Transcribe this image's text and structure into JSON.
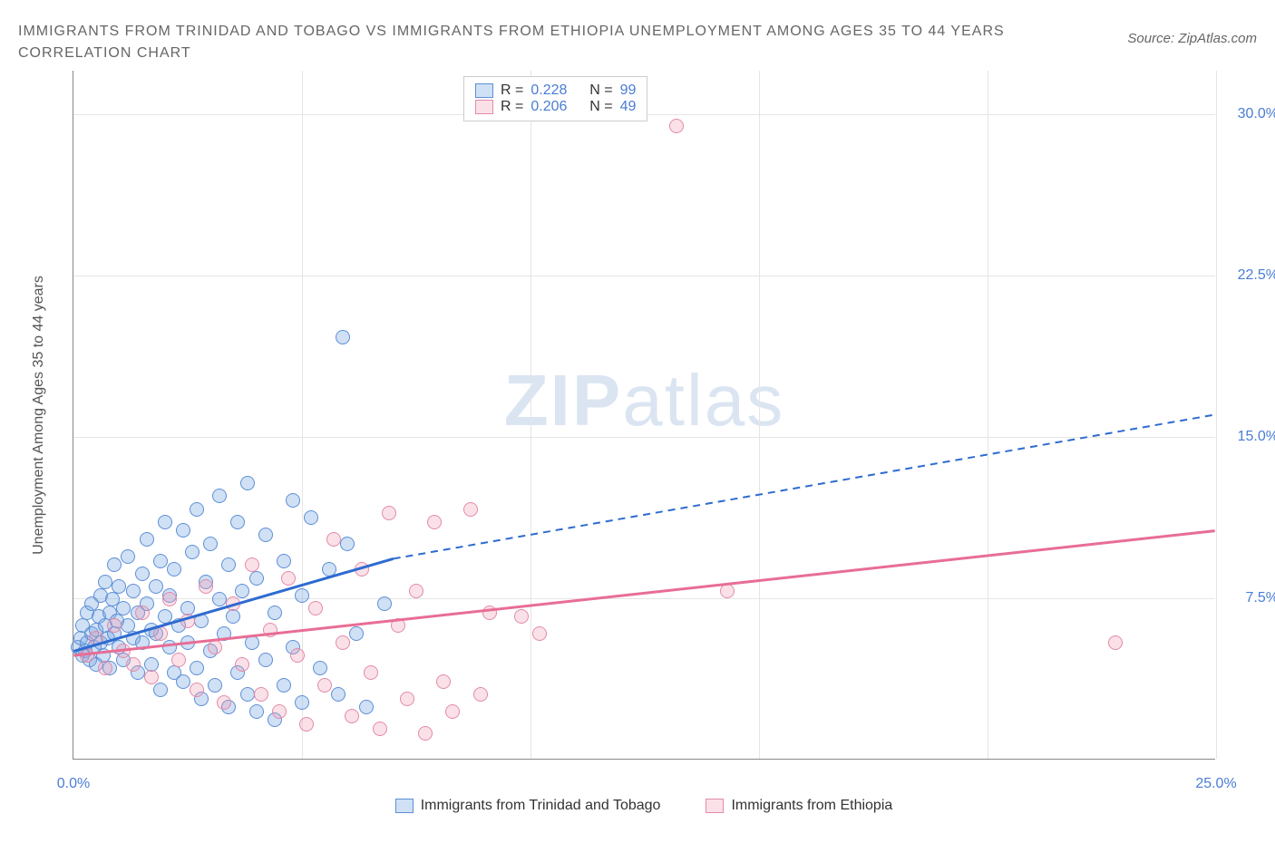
{
  "title_line1": "IMMIGRANTS FROM TRINIDAD AND TOBAGO VS IMMIGRANTS FROM ETHIOPIA UNEMPLOYMENT AMONG AGES 35 TO 44 YEARS",
  "title_line2": "CORRELATION CHART",
  "source_prefix": "Source: ",
  "source_link": "ZipAtlas.com",
  "y_axis_title": "Unemployment Among Ages 35 to 44 years",
  "watermark_bold": "ZIP",
  "watermark_light": "atlas",
  "chart": {
    "type": "scatter",
    "background_color": "#ffffff",
    "grid_color": "#e5e5e5",
    "axis_color": "#888888",
    "xlim": [
      0,
      25
    ],
    "ylim": [
      0,
      32
    ],
    "xticks": [
      0,
      5,
      10,
      15,
      20,
      25
    ],
    "xtick_labels": [
      "0.0%",
      "",
      "",
      "",
      "",
      "25.0%"
    ],
    "yticks": [
      7.5,
      15,
      22.5,
      30
    ],
    "ytick_labels": [
      "7.5%",
      "15.0%",
      "22.5%",
      "30.0%"
    ],
    "series": [
      {
        "name": "Immigrants from Trinidad and Tobago",
        "fill": "rgba(120,165,225,0.35)",
        "stroke": "#5d8fd6",
        "line_color": "#2e6bd0",
        "r_value": "0.228",
        "n_value": "99",
        "trend": {
          "x1": 0,
          "y1": 5.0,
          "x2_solid": 7.0,
          "y2_solid": 9.3,
          "x2": 25,
          "y2": 16.0
        },
        "points": [
          [
            0.1,
            5.2
          ],
          [
            0.15,
            5.6
          ],
          [
            0.2,
            4.8
          ],
          [
            0.2,
            6.2
          ],
          [
            0.25,
            5.0
          ],
          [
            0.3,
            5.4
          ],
          [
            0.3,
            6.8
          ],
          [
            0.35,
            4.6
          ],
          [
            0.4,
            5.8
          ],
          [
            0.4,
            7.2
          ],
          [
            0.45,
            5.2
          ],
          [
            0.5,
            6.0
          ],
          [
            0.5,
            4.4
          ],
          [
            0.55,
            6.6
          ],
          [
            0.6,
            5.4
          ],
          [
            0.6,
            7.6
          ],
          [
            0.65,
            4.8
          ],
          [
            0.7,
            6.2
          ],
          [
            0.7,
            8.2
          ],
          [
            0.75,
            5.6
          ],
          [
            0.8,
            6.8
          ],
          [
            0.8,
            4.2
          ],
          [
            0.85,
            7.4
          ],
          [
            0.9,
            5.8
          ],
          [
            0.9,
            9.0
          ],
          [
            0.95,
            6.4
          ],
          [
            1.0,
            5.2
          ],
          [
            1.0,
            8.0
          ],
          [
            1.1,
            7.0
          ],
          [
            1.1,
            4.6
          ],
          [
            1.2,
            6.2
          ],
          [
            1.2,
            9.4
          ],
          [
            1.3,
            5.6
          ],
          [
            1.3,
            7.8
          ],
          [
            1.4,
            6.8
          ],
          [
            1.4,
            4.0
          ],
          [
            1.5,
            8.6
          ],
          [
            1.5,
            5.4
          ],
          [
            1.6,
            7.2
          ],
          [
            1.6,
            10.2
          ],
          [
            1.7,
            6.0
          ],
          [
            1.7,
            4.4
          ],
          [
            1.8,
            8.0
          ],
          [
            1.8,
            5.8
          ],
          [
            1.9,
            9.2
          ],
          [
            1.9,
            3.2
          ],
          [
            2.0,
            6.6
          ],
          [
            2.0,
            11.0
          ],
          [
            2.1,
            5.2
          ],
          [
            2.1,
            7.6
          ],
          [
            2.2,
            4.0
          ],
          [
            2.2,
            8.8
          ],
          [
            2.3,
            6.2
          ],
          [
            2.4,
            10.6
          ],
          [
            2.4,
            3.6
          ],
          [
            2.5,
            7.0
          ],
          [
            2.5,
            5.4
          ],
          [
            2.6,
            9.6
          ],
          [
            2.7,
            4.2
          ],
          [
            2.7,
            11.6
          ],
          [
            2.8,
            6.4
          ],
          [
            2.8,
            2.8
          ],
          [
            2.9,
            8.2
          ],
          [
            3.0,
            5.0
          ],
          [
            3.0,
            10.0
          ],
          [
            3.1,
            3.4
          ],
          [
            3.2,
            7.4
          ],
          [
            3.2,
            12.2
          ],
          [
            3.3,
            5.8
          ],
          [
            3.4,
            2.4
          ],
          [
            3.4,
            9.0
          ],
          [
            3.5,
            6.6
          ],
          [
            3.6,
            4.0
          ],
          [
            3.6,
            11.0
          ],
          [
            3.7,
            7.8
          ],
          [
            3.8,
            3.0
          ],
          [
            3.8,
            12.8
          ],
          [
            3.9,
            5.4
          ],
          [
            4.0,
            8.4
          ],
          [
            4.0,
            2.2
          ],
          [
            4.2,
            10.4
          ],
          [
            4.2,
            4.6
          ],
          [
            4.4,
            6.8
          ],
          [
            4.4,
            1.8
          ],
          [
            4.6,
            9.2
          ],
          [
            4.6,
            3.4
          ],
          [
            4.8,
            12.0
          ],
          [
            4.8,
            5.2
          ],
          [
            5.0,
            7.6
          ],
          [
            5.0,
            2.6
          ],
          [
            5.2,
            11.2
          ],
          [
            5.4,
            4.2
          ],
          [
            5.6,
            8.8
          ],
          [
            5.8,
            3.0
          ],
          [
            6.0,
            10.0
          ],
          [
            6.2,
            5.8
          ],
          [
            6.4,
            2.4
          ],
          [
            5.9,
            19.6
          ],
          [
            6.8,
            7.2
          ]
        ]
      },
      {
        "name": "Immigrants from Ethiopia",
        "fill": "rgba(240,155,180,0.30)",
        "stroke": "#e38aa8",
        "line_color": "#e86d95",
        "r_value": "0.206",
        "n_value": "49",
        "trend": {
          "x1": 0,
          "y1": 4.8,
          "x2_solid": 25,
          "y2_solid": 10.6,
          "x2": 25,
          "y2": 10.6
        },
        "points": [
          [
            0.3,
            4.8
          ],
          [
            0.5,
            5.6
          ],
          [
            0.7,
            4.2
          ],
          [
            0.9,
            6.2
          ],
          [
            1.1,
            5.0
          ],
          [
            1.3,
            4.4
          ],
          [
            1.5,
            6.8
          ],
          [
            1.7,
            3.8
          ],
          [
            1.9,
            5.8
          ],
          [
            2.1,
            7.4
          ],
          [
            2.3,
            4.6
          ],
          [
            2.5,
            6.4
          ],
          [
            2.7,
            3.2
          ],
          [
            2.9,
            8.0
          ],
          [
            3.1,
            5.2
          ],
          [
            3.3,
            2.6
          ],
          [
            3.5,
            7.2
          ],
          [
            3.7,
            4.4
          ],
          [
            3.9,
            9.0
          ],
          [
            4.1,
            3.0
          ],
          [
            4.3,
            6.0
          ],
          [
            4.5,
            2.2
          ],
          [
            4.7,
            8.4
          ],
          [
            4.9,
            4.8
          ],
          [
            5.1,
            1.6
          ],
          [
            5.3,
            7.0
          ],
          [
            5.5,
            3.4
          ],
          [
            5.7,
            10.2
          ],
          [
            5.9,
            5.4
          ],
          [
            6.1,
            2.0
          ],
          [
            6.3,
            8.8
          ],
          [
            6.5,
            4.0
          ],
          [
            6.7,
            1.4
          ],
          [
            6.9,
            11.4
          ],
          [
            7.1,
            6.2
          ],
          [
            7.3,
            2.8
          ],
          [
            7.5,
            7.8
          ],
          [
            7.9,
            11.0
          ],
          [
            8.1,
            3.6
          ],
          [
            8.3,
            2.2
          ],
          [
            8.7,
            11.6
          ],
          [
            8.9,
            3.0
          ],
          [
            9.1,
            6.8
          ],
          [
            9.8,
            6.6
          ],
          [
            10.2,
            5.8
          ],
          [
            13.2,
            29.4
          ],
          [
            14.3,
            7.8
          ],
          [
            22.8,
            5.4
          ],
          [
            7.7,
            1.2
          ]
        ]
      }
    ]
  },
  "legend_top": {
    "r_label": "R =",
    "n_label": "N ="
  },
  "legend_bottom_x_left": "0.0%",
  "legend_bottom_x_right": "25.0%"
}
